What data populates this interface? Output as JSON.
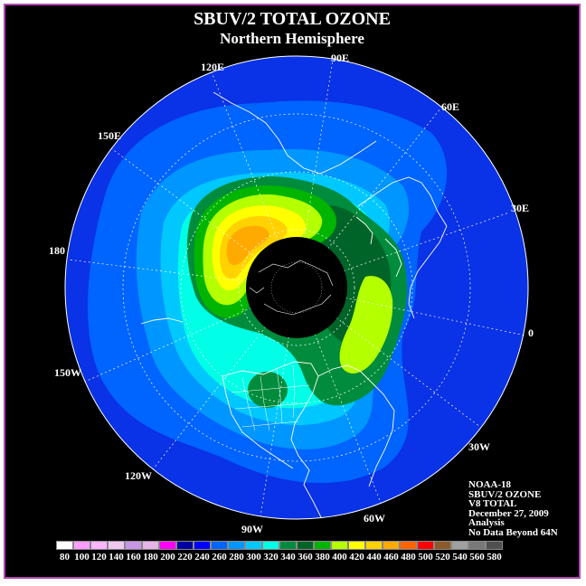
{
  "title": "SBUV/2 TOTAL OZONE",
  "subtitle": "Northern Hemisphere",
  "longitude_labels": {
    "lon_90e": "90E",
    "lon_120e": "120E",
    "lon_60e": "60E",
    "lon_150e": "150E",
    "lon_30e": "30E",
    "lon_180": "180",
    "lon_0": "0",
    "lon_150w": "150W",
    "lon_30w": "30W",
    "lon_120w": "120W",
    "lon_60w": "60W",
    "lon_90w": "90W"
  },
  "info": {
    "satellite": "NOAA-18",
    "product": "SBUV/2 OZONE",
    "version": "V8 TOTAL",
    "date": "December 27, 2009",
    "type": "Analysis",
    "note": "No Data Beyond 64N"
  },
  "colorbar": {
    "ticks": [
      "80",
      "100",
      "120",
      "140",
      "160",
      "180",
      "200",
      "220",
      "240",
      "260",
      "280",
      "300",
      "320",
      "340",
      "360",
      "380",
      "400",
      "420",
      "440",
      "460",
      "480",
      "500",
      "520",
      "540",
      "560",
      "580"
    ],
    "colors": [
      "#ffffff",
      "#ff9cff",
      "#ffb4ff",
      "#f0c8f0",
      "#c896e6",
      "#e6b4e6",
      "#ff00ff",
      "#0000a0",
      "#0000ff",
      "#0064ff",
      "#0096ff",
      "#00c8ff",
      "#00ffe6",
      "#008c3c",
      "#006428",
      "#00b400",
      "#b4ff00",
      "#ffff00",
      "#ffd200",
      "#ffaa00",
      "#ff6400",
      "#ff0000",
      "#8c5a28",
      "#a0a0a0",
      "#787878",
      "#505050"
    ],
    "palette": {
      "deep_blue": "#0a32e6",
      "blue": "#0064ff",
      "light_blue": "#0096ff",
      "sky": "#00c8ff",
      "cyan": "#00ffe6",
      "dark_green": "#006428",
      "green": "#008c3c",
      "bright_green": "#00b400",
      "yellow_green": "#b4ff00",
      "yellow": "#ffff00",
      "gold": "#ffd200",
      "orange": "#ffaa00",
      "no_data": "#000000"
    }
  }
}
